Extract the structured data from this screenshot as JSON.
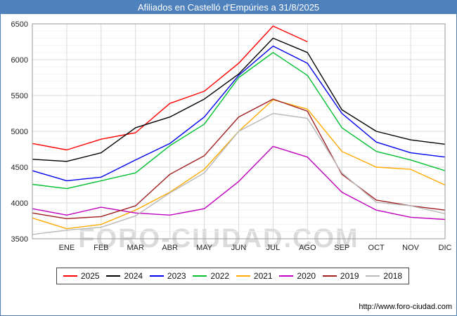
{
  "title": "Afiliados en Castelló d'Empúries a 31/8/2025",
  "watermark": "FORO-CIUDAD.COM",
  "footer_url": "http://www.foro-ciudad.com",
  "colors": {
    "titlebar": "#4f81bd",
    "plot_border": "#999999",
    "grid_major": "#d9d9d9",
    "grid_minor": "#f2f2f2"
  },
  "chart_data": {
    "type": "line",
    "title": "Afiliados en Castelló d'Empúries a 31/8/2025",
    "categories": [
      "ENE",
      "FEB",
      "MAR",
      "ABR",
      "MAY",
      "JUN",
      "JUL",
      "AGO",
      "SEP",
      "OCT",
      "NOV",
      "DIC"
    ],
    "ylim": [
      3500,
      6500
    ],
    "ytick_step": 500,
    "grid": true,
    "legend_position": "bottom",
    "start_note": "start = value drawn at the left axis edge, before the ENE tick",
    "series": [
      {
        "name": "2025",
        "color": "#ff0000",
        "start": 4830,
        "values": [
          4740,
          4890,
          4980,
          5390,
          5560,
          5950,
          6470,
          6250
        ]
      },
      {
        "name": "2024",
        "color": "#000000",
        "start": 4610,
        "values": [
          4580,
          4700,
          5050,
          5200,
          5450,
          5800,
          6300,
          6100,
          5300,
          5000,
          4880,
          4820
        ]
      },
      {
        "name": "2023",
        "color": "#0000ee",
        "start": 4450,
        "values": [
          4310,
          4360,
          4600,
          4830,
          5200,
          5780,
          6190,
          5950,
          5250,
          4850,
          4700,
          4640
        ]
      },
      {
        "name": "2022",
        "color": "#00c030",
        "start": 4260,
        "values": [
          4200,
          4310,
          4420,
          4800,
          5100,
          5750,
          6100,
          5780,
          5050,
          4720,
          4600,
          4450
        ]
      },
      {
        "name": "2021",
        "color": "#ffaa00",
        "start": 3790,
        "values": [
          3640,
          3700,
          3900,
          4150,
          4470,
          5000,
          5440,
          5310,
          4720,
          4500,
          4470,
          4250
        ]
      },
      {
        "name": "2020",
        "color": "#c000c0",
        "start": 3920,
        "values": [
          3830,
          3940,
          3860,
          3830,
          3920,
          4300,
          4790,
          4640,
          4150,
          3900,
          3800,
          3770
        ]
      },
      {
        "name": "2019",
        "color": "#a02020",
        "start": 3860,
        "values": [
          3780,
          3810,
          3960,
          4400,
          4660,
          5200,
          5450,
          5280,
          4400,
          4040,
          3960,
          3900
        ]
      },
      {
        "name": "2018",
        "color": "#b8b8b8",
        "start": 3560,
        "values": [
          3620,
          3660,
          3820,
          4140,
          4420,
          5000,
          5250,
          5180,
          4420,
          4010,
          3960,
          3850
        ]
      }
    ]
  }
}
